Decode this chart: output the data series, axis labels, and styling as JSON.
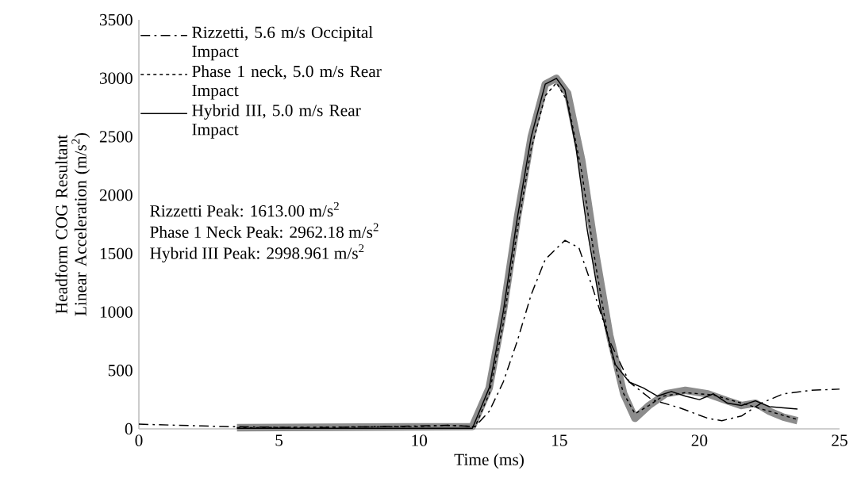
{
  "chart_data": {
    "type": "line",
    "xlabel": "Time (ms)",
    "ylabel": "Headform COG Resultant Linear Acceleration (m/s$^{2}$)",
    "xlim": [
      0,
      25
    ],
    "xticks": [
      0,
      5,
      10,
      15,
      20,
      25
    ],
    "ylim": [
      0,
      3500
    ],
    "yticks": [
      0,
      500,
      1000,
      1500,
      2000,
      2500,
      3000,
      3500
    ],
    "grid": false,
    "legend": "top left",
    "annotations": [
      "Rizzetti Peak: 1613.00 m/s$^{2}$",
      "Phase 1 Neck Peak: 2962.18  m/s$^{2}$",
      "Hybrid III Peak: 2998.961  m/s$^{2}$"
    ],
    "series": [
      {
        "color": "#8c8c8c",
        "line_style": "solid",
        "x": [
          3.5,
          11.9,
          12.5,
          13,
          13.5,
          14,
          14.5,
          14.9,
          15.3,
          15.8,
          16.3,
          16.8,
          17.3,
          17.7,
          18.2,
          18.8,
          19.5,
          20.3,
          21,
          21.5,
          22,
          22.5,
          23,
          23.5
        ],
        "values": [
          10,
          20,
          350,
          1000,
          1800,
          2500,
          2950,
          3000,
          2870,
          2300,
          1500,
          800,
          300,
          90,
          200,
          300,
          330,
          300,
          240,
          200,
          220,
          150,
          100,
          70
        ]
      },
      {
        "name": "Rizzetti, 5.6 m/s Occipital Impact",
        "color": "#000000",
        "line_style": "dashdot",
        "x": [
          0,
          3,
          6,
          9,
          11,
          12,
          12.5,
          13,
          13.5,
          14,
          14.5,
          15.2,
          15.7,
          16.2,
          16.8,
          17.5,
          18.3,
          19.3,
          20.3,
          20.8,
          21.5,
          22.2,
          23,
          24,
          25
        ],
        "values": [
          40,
          20,
          10,
          20,
          30,
          20,
          150,
          400,
          750,
          1150,
          1450,
          1613,
          1550,
          1200,
          750,
          400,
          250,
          180,
          90,
          70,
          110,
          220,
          300,
          330,
          340
        ]
      },
      {
        "name": "Phase 1 neck, 5.0 m/s Rear Impact",
        "color": "#000000",
        "line_style": "dashed",
        "x": [
          3.5,
          10,
          11,
          12,
          12.5,
          13,
          13.5,
          14,
          14.5,
          14.9,
          15.3,
          15.8,
          16.3,
          16.8,
          17.3,
          17.7,
          18.2,
          18.7,
          19.5,
          20.5,
          21.5,
          22.5,
          23.5
        ],
        "values": [
          10,
          20,
          30,
          20,
          300,
          900,
          1700,
          2400,
          2850,
          2962,
          2800,
          2200,
          1400,
          700,
          300,
          130,
          200,
          280,
          310,
          290,
          220,
          150,
          80
        ]
      },
      {
        "name": "Hybrid III, 5.0 m/s Rear Impact",
        "color": "#000000",
        "line_style": "solid",
        "x": [
          3.5,
          11.9,
          12.5,
          13,
          13.5,
          14,
          14.5,
          14.9,
          15.2,
          15.6,
          16,
          16.5,
          17,
          17.5,
          18,
          18.5,
          19,
          19.5,
          20,
          20.5,
          21,
          21.5,
          22,
          22.5,
          23,
          23.5
        ],
        "values": [
          5,
          5,
          350,
          1000,
          1800,
          2500,
          2950,
          2999,
          2900,
          2400,
          1700,
          1000,
          550,
          400,
          350,
          280,
          320,
          280,
          250,
          300,
          220,
          200,
          240,
          190,
          180,
          170
        ]
      }
    ]
  }
}
